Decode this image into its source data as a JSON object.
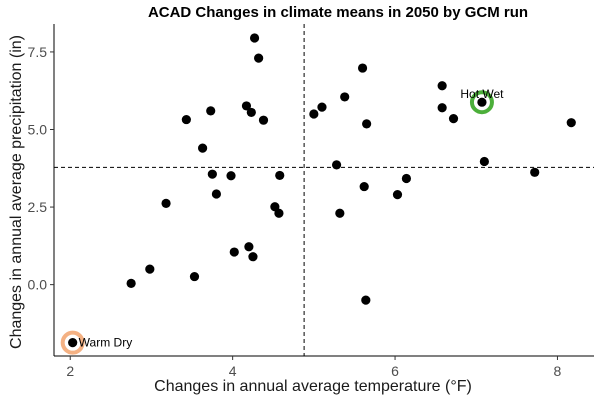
{
  "chart_data": {
    "type": "scatter",
    "title": "ACAD Changes in climate means in 2050 by GCM run",
    "xlabel": "Changes in annual average temperature (°F)",
    "ylabel": "Changes in annual average precipitation (in)",
    "xlim": [
      1.8,
      8.45
    ],
    "ylim": [
      -2.3,
      8.4
    ],
    "x_ticks": [
      2,
      4,
      6,
      8
    ],
    "x_tick_labels": [
      "2",
      "4",
      "6",
      "8"
    ],
    "y_ticks": [
      0.0,
      2.5,
      5.0,
      7.5
    ],
    "y_tick_labels": [
      "0.0",
      "2.5",
      "5.0",
      "7.5"
    ],
    "grid": false,
    "reference_lines": {
      "x": 4.88,
      "y": 3.78
    },
    "point_color": "#000000",
    "points": [
      {
        "x": 2.03,
        "y": -1.87
      },
      {
        "x": 2.75,
        "y": 0.04
      },
      {
        "x": 2.98,
        "y": 0.5
      },
      {
        "x": 3.18,
        "y": 2.62
      },
      {
        "x": 3.43,
        "y": 5.32
      },
      {
        "x": 3.53,
        "y": 0.26
      },
      {
        "x": 3.63,
        "y": 4.4
      },
      {
        "x": 3.73,
        "y": 5.6
      },
      {
        "x": 3.75,
        "y": 3.56
      },
      {
        "x": 3.8,
        "y": 2.92
      },
      {
        "x": 3.98,
        "y": 3.51
      },
      {
        "x": 4.02,
        "y": 1.05
      },
      {
        "x": 4.17,
        "y": 5.76
      },
      {
        "x": 4.2,
        "y": 1.22
      },
      {
        "x": 4.23,
        "y": 5.55
      },
      {
        "x": 4.25,
        "y": 0.9
      },
      {
        "x": 4.27,
        "y": 7.95
      },
      {
        "x": 4.32,
        "y": 7.3
      },
      {
        "x": 4.38,
        "y": 5.3
      },
      {
        "x": 4.52,
        "y": 2.51
      },
      {
        "x": 4.57,
        "y": 2.3
      },
      {
        "x": 4.58,
        "y": 3.52
      },
      {
        "x": 5.0,
        "y": 5.5
      },
      {
        "x": 5.1,
        "y": 5.72
      },
      {
        "x": 5.28,
        "y": 3.86
      },
      {
        "x": 5.32,
        "y": 2.3
      },
      {
        "x": 5.38,
        "y": 6.05
      },
      {
        "x": 5.6,
        "y": 6.98
      },
      {
        "x": 5.62,
        "y": 3.16
      },
      {
        "x": 5.64,
        "y": -0.5
      },
      {
        "x": 5.65,
        "y": 5.18
      },
      {
        "x": 6.03,
        "y": 2.9
      },
      {
        "x": 6.14,
        "y": 3.42
      },
      {
        "x": 6.58,
        "y": 6.41
      },
      {
        "x": 6.58,
        "y": 5.7
      },
      {
        "x": 6.72,
        "y": 5.35
      },
      {
        "x": 7.07,
        "y": 5.88
      },
      {
        "x": 7.1,
        "y": 3.97
      },
      {
        "x": 7.72,
        "y": 3.62
      },
      {
        "x": 8.17,
        "y": 5.22
      }
    ],
    "annotations": [
      {
        "label": "Warm Dry",
        "x": 2.03,
        "y": -1.87,
        "ring_color": "#f4b183"
      },
      {
        "label": "Hot Wet",
        "x": 7.07,
        "y": 5.88,
        "ring_color": "#4caf3a"
      }
    ]
  }
}
